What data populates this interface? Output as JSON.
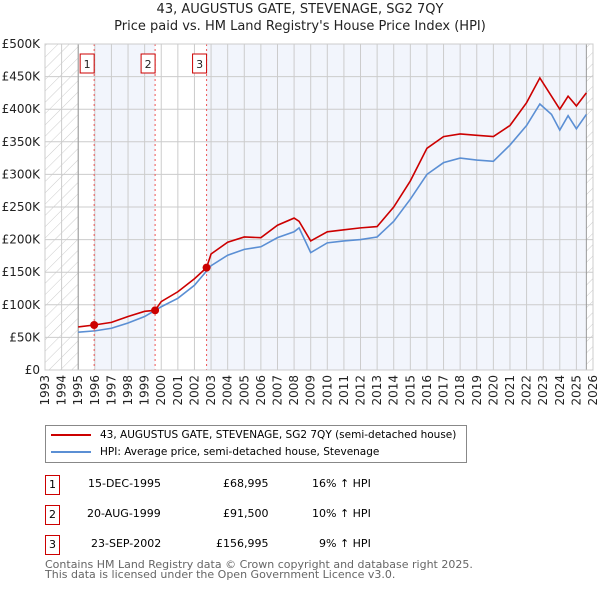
{
  "title": "43, AUGUSTUS GATE, STEVENAGE, SG2 7QY",
  "subtitle": "Price paid vs. HM Land Registry's House Price Index (HPI)",
  "chart_data": {
    "type": "line",
    "xlim": [
      1993,
      2026
    ],
    "ylim": [
      0,
      500000
    ],
    "x_ticks": [
      "1993",
      "1994",
      "1995",
      "1996",
      "1997",
      "1998",
      "1999",
      "2000",
      "2001",
      "2002",
      "2003",
      "2004",
      "2005",
      "2006",
      "2007",
      "2008",
      "2009",
      "2010",
      "2011",
      "2012",
      "2013",
      "2014",
      "2015",
      "2016",
      "2017",
      "2018",
      "2019",
      "2020",
      "2021",
      "2022",
      "2023",
      "2024",
      "2025",
      "2026"
    ],
    "y_ticks": [
      {
        "v": 0,
        "label": "£0"
      },
      {
        "v": 50000,
        "label": "£50K"
      },
      {
        "v": 100000,
        "label": "£100K"
      },
      {
        "v": 150000,
        "label": "£150K"
      },
      {
        "v": 200000,
        "label": "£200K"
      },
      {
        "v": 250000,
        "label": "£250K"
      },
      {
        "v": 300000,
        "label": "£300K"
      },
      {
        "v": 350000,
        "label": "£350K"
      },
      {
        "v": 400000,
        "label": "£400K"
      },
      {
        "v": 450000,
        "label": "£450K"
      },
      {
        "v": 500000,
        "label": "£500K"
      }
    ],
    "grid": true,
    "data_range": [
      1995,
      2025.6
    ],
    "series": [
      {
        "name": "43, AUGUSTUS GATE, STEVENAGE, SG2 7QY (semi-detached house)",
        "color": "#cc0000",
        "x": [
          1995,
          1995.96,
          1997,
          1998,
          1999,
          1999.63,
          2000,
          2001,
          2002,
          2002.73,
          2003,
          2004,
          2005,
          2006,
          2007,
          2008,
          2008.3,
          2009,
          2010,
          2011,
          2012,
          2013,
          2014,
          2015,
          2016,
          2017,
          2018,
          2019,
          2020,
          2021,
          2022,
          2022.8,
          2023.5,
          2024,
          2024.5,
          2025,
          2025.6
        ],
        "y": [
          66000,
          68995,
          73000,
          82000,
          90000,
          91500,
          105000,
          120000,
          140000,
          156995,
          178000,
          196000,
          204000,
          203000,
          222000,
          233000,
          228000,
          198000,
          212000,
          215000,
          218000,
          220000,
          250000,
          290000,
          340000,
          358000,
          362000,
          360000,
          358000,
          375000,
          410000,
          448000,
          420000,
          400000,
          420000,
          405000,
          425000
        ]
      },
      {
        "name": "HPI: Average price, semi-detached house, Stevenage",
        "color": "#5b8fd4",
        "x": [
          1995,
          1996,
          1997,
          1998,
          1999,
          2000,
          2001,
          2002,
          2003,
          2004,
          2005,
          2006,
          2007,
          2008,
          2008.3,
          2009,
          2010,
          2011,
          2012,
          2013,
          2014,
          2015,
          2016,
          2017,
          2018,
          2019,
          2020,
          2021,
          2022,
          2022.8,
          2023.5,
          2024,
          2024.5,
          2025,
          2025.6
        ],
        "y": [
          58000,
          60000,
          64000,
          72000,
          82000,
          97000,
          110000,
          130000,
          160000,
          176000,
          185000,
          189000,
          203000,
          212000,
          218000,
          180000,
          195000,
          198000,
          200000,
          204000,
          228000,
          262000,
          300000,
          318000,
          325000,
          322000,
          320000,
          345000,
          375000,
          408000,
          392000,
          368000,
          390000,
          370000,
          392000
        ]
      }
    ],
    "sales": [
      {
        "n": "1",
        "x": 1995.96,
        "y": 68995
      },
      {
        "n": "2",
        "x": 1999.63,
        "y": 91500
      },
      {
        "n": "3",
        "x": 2002.73,
        "y": 156995
      }
    ]
  },
  "legend": [
    {
      "label": "43, AUGUSTUS GATE, STEVENAGE, SG2 7QY (semi-detached house)",
      "color": "#cc0000"
    },
    {
      "label": "HPI: Average price, semi-detached house, Stevenage",
      "color": "#5b8fd4"
    }
  ],
  "transactions": [
    {
      "n": "1",
      "date": "15-DEC-1995",
      "price": "£68,995",
      "hpi": "16% ↑ HPI"
    },
    {
      "n": "2",
      "date": "20-AUG-1999",
      "price": "£91,500",
      "hpi": "10% ↑ HPI"
    },
    {
      "n": "3",
      "date": "23-SEP-2002",
      "price": "£156,995",
      "hpi": "9% ↑ HPI"
    }
  ],
  "footer": [
    "Contains HM Land Registry data © Crown copyright and database right 2025.",
    "This data is licensed under the Open Government Licence v3.0."
  ]
}
